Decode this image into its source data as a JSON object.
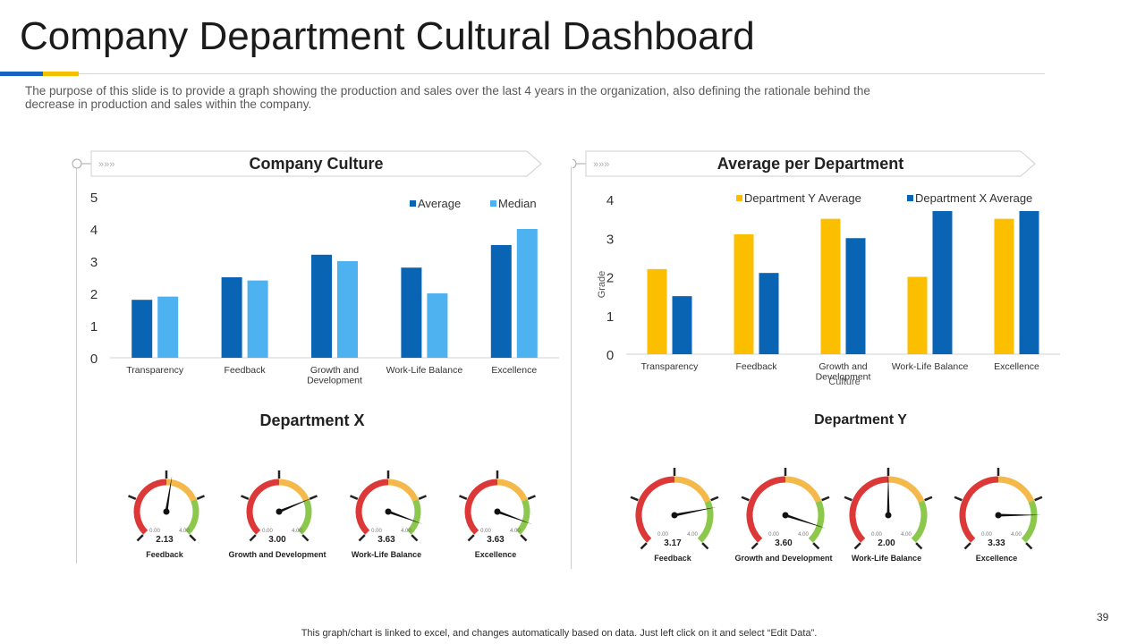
{
  "page": {
    "title": "Company Department Cultural Dashboard",
    "subtitle": "The purpose of this slide is to provide a graph showing the production and sales over the last 4 years in the organization, also defining the rationale behind the decrease in production and sales within the company.",
    "footer": "This graph/chart is linked to excel,  and changes automatically based on data. Just left click on it and select “Edit Data”.",
    "page_number": "39"
  },
  "colors": {
    "dark_blue": "#0a64b4",
    "light_blue": "#4eb1f0",
    "yellow": "#fcbf00",
    "blue": "#0a64b4",
    "gauge_red": "#dd3838",
    "gauge_orange": "#f4b94a",
    "gauge_green": "#8cc84b"
  },
  "chart_data": [
    {
      "type": "bar",
      "title": "Company Culture",
      "categories": [
        "Transparency",
        "Feedback",
        "Growth and Development",
        "Work-Life Balance",
        "Excellence"
      ],
      "series": [
        {
          "name": "Average",
          "values": [
            1.8,
            2.5,
            3.2,
            2.8,
            3.5
          ]
        },
        {
          "name": "Median",
          "values": [
            1.9,
            2.4,
            3.0,
            2.0,
            4.0
          ]
        }
      ],
      "ylim": [
        0,
        5
      ],
      "yticks": [
        "0",
        "1",
        "2",
        "3",
        "4",
        "5"
      ],
      "xlabel": "",
      "ylabel": "",
      "legend": "top-right"
    },
    {
      "type": "bar",
      "title": "Average per Department",
      "categories": [
        "Transparency",
        "Feedback",
        "Growth and Development",
        "Work-Life Balance",
        "Excellence"
      ],
      "series": [
        {
          "name": "Department Y Average",
          "values": [
            2.2,
            3.1,
            3.5,
            2.0,
            3.5
          ]
        },
        {
          "name": "Department X Average",
          "values": [
            1.5,
            2.1,
            3.0,
            3.7,
            3.7
          ]
        }
      ],
      "ylim": [
        0,
        4
      ],
      "yticks": [
        "0",
        "1",
        "2",
        "3",
        "4"
      ],
      "xlabel": "Culture",
      "ylabel": "Grade",
      "legend": "top"
    },
    {
      "type": "gauge",
      "title": "Department X",
      "min": 0,
      "max": 4,
      "min_label": "0.00",
      "max_label": "4.00",
      "gauges": [
        {
          "label": "Feedback",
          "value": 2.13,
          "value_text": "2.13"
        },
        {
          "label": "Growth and Development",
          "value": 3.0,
          "value_text": "3.00"
        },
        {
          "label": "Work-Life Balance",
          "value": 3.63,
          "value_text": "3.63"
        },
        {
          "label": "Excellence",
          "value": 3.63,
          "value_text": "3.63"
        }
      ]
    },
    {
      "type": "gauge",
      "title": "Department Y",
      "min": 0,
      "max": 4,
      "min_label": "0.00",
      "max_label": "4.00",
      "gauges": [
        {
          "label": "Feedback",
          "value": 3.17,
          "value_text": "3.17"
        },
        {
          "label": "Growth and Development",
          "value": 3.6,
          "value_text": "3.60"
        },
        {
          "label": "Work-Life Balance",
          "value": 2.0,
          "value_text": "2.00"
        },
        {
          "label": "Excellence",
          "value": 3.33,
          "value_text": "3.33"
        }
      ]
    }
  ]
}
